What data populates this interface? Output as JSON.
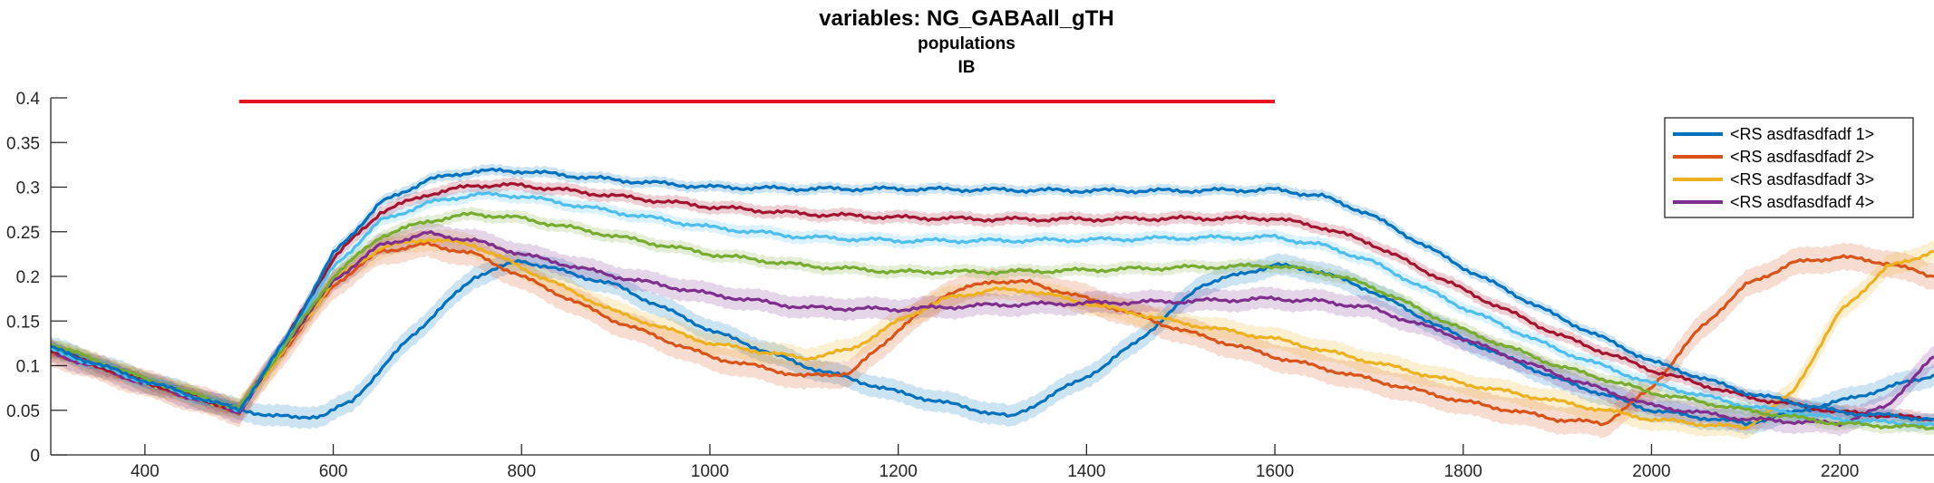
{
  "chart_data": {
    "type": "line",
    "title": "variables: NG_GABAall_gTH",
    "subtitle_lines": [
      "populations",
      "IB"
    ],
    "xlim": [
      300,
      2300
    ],
    "ylim": [
      0,
      0.4
    ],
    "xticks": [
      400,
      600,
      800,
      1000,
      1200,
      1400,
      1600,
      1800,
      2000,
      2200
    ],
    "yticks": [
      0,
      0.05,
      0.1,
      0.15,
      0.2,
      0.25,
      0.3,
      0.35,
      0.4
    ],
    "ytick_labels": [
      "0",
      "0.05",
      "0.1",
      "0.15",
      "0.2",
      "0.25",
      "0.3",
      "0.35",
      "0.4"
    ],
    "legend_position": "top-right",
    "stimulus_bar": {
      "x": [
        500,
        1600
      ],
      "y": 0.396,
      "color": "#e8131f"
    },
    "series": [
      {
        "name": "<RS asdfasdfadf 1>",
        "color": "#0072bd",
        "legend": true,
        "band": true,
        "band_width": 0.012,
        "x": [
          300,
          400,
          500,
          560,
          590,
          620,
          680,
          750,
          800,
          900,
          1000,
          1100,
          1200,
          1320,
          1360,
          1420,
          1480,
          1520,
          1600,
          1650,
          1700,
          1800,
          1900,
          2000,
          2100,
          2200,
          2300
        ],
        "y": [
          0.12,
          0.083,
          0.05,
          0.041,
          0.045,
          0.06,
          0.13,
          0.2,
          0.218,
          0.19,
          0.14,
          0.1,
          0.07,
          0.042,
          0.065,
          0.1,
          0.15,
          0.19,
          0.213,
          0.205,
          0.185,
          0.13,
          0.085,
          0.05,
          0.035,
          0.06,
          0.09
        ]
      },
      {
        "name": "<RS asdfasdfadf 2>",
        "color": "#d95319",
        "legend": true,
        "band": true,
        "band_width": 0.015,
        "x": [
          300,
          400,
          500,
          550,
          600,
          650,
          700,
          750,
          800,
          900,
          1000,
          1100,
          1150,
          1200,
          1250,
          1300,
          1340,
          1400,
          1500,
          1600,
          1700,
          1800,
          1900,
          1950,
          2000,
          2050,
          2100,
          2150,
          2200,
          2250,
          2300
        ],
        "y": [
          0.115,
          0.08,
          0.048,
          0.12,
          0.19,
          0.228,
          0.236,
          0.225,
          0.2,
          0.15,
          0.11,
          0.088,
          0.092,
          0.14,
          0.18,
          0.195,
          0.193,
          0.175,
          0.14,
          0.11,
          0.085,
          0.06,
          0.04,
          0.035,
          0.075,
          0.14,
          0.19,
          0.215,
          0.222,
          0.215,
          0.2
        ]
      },
      {
        "name": "<RS asdfasdfadf 3>",
        "color": "#edb120",
        "legend": true,
        "band": true,
        "band_width": 0.012,
        "x": [
          300,
          400,
          500,
          550,
          600,
          650,
          700,
          750,
          800,
          900,
          1000,
          1100,
          1150,
          1200,
          1250,
          1300,
          1340,
          1400,
          1500,
          1600,
          1700,
          1800,
          1900,
          2000,
          2100,
          2150,
          2200,
          2250,
          2300
        ],
        "y": [
          0.118,
          0.082,
          0.05,
          0.12,
          0.195,
          0.232,
          0.242,
          0.235,
          0.21,
          0.16,
          0.125,
          0.108,
          0.118,
          0.15,
          0.175,
          0.185,
          0.184,
          0.17,
          0.148,
          0.13,
          0.105,
          0.08,
          0.06,
          0.04,
          0.03,
          0.07,
          0.16,
          0.21,
          0.228
        ]
      },
      {
        "name": "<RS asdfasdfadf 4>",
        "color": "#7e2f8e",
        "legend": true,
        "band": true,
        "band_width": 0.012,
        "x": [
          300,
          400,
          500,
          550,
          600,
          650,
          700,
          750,
          800,
          900,
          1000,
          1100,
          1200,
          1300,
          1400,
          1500,
          1600,
          1650,
          1700,
          1800,
          1900,
          2000,
          2100,
          2200,
          2250,
          2300
        ],
        "y": [
          0.115,
          0.08,
          0.048,
          0.125,
          0.195,
          0.235,
          0.248,
          0.24,
          0.225,
          0.2,
          0.18,
          0.165,
          0.163,
          0.168,
          0.17,
          0.172,
          0.175,
          0.172,
          0.165,
          0.13,
          0.09,
          0.055,
          0.04,
          0.035,
          0.055,
          0.11
        ]
      },
      {
        "name": "",
        "color": "#a2142f",
        "legend": false,
        "band": true,
        "band_width": 0.007,
        "x": [
          300,
          400,
          500,
          550,
          600,
          650,
          700,
          750,
          800,
          900,
          1000,
          1100,
          1200,
          1300,
          1400,
          1500,
          1600,
          1650,
          1700,
          1800,
          1900,
          2000,
          2100,
          2200,
          2300
        ],
        "y": [
          0.118,
          0.082,
          0.05,
          0.13,
          0.22,
          0.272,
          0.292,
          0.302,
          0.302,
          0.29,
          0.278,
          0.27,
          0.266,
          0.264,
          0.264,
          0.265,
          0.265,
          0.255,
          0.238,
          0.185,
          0.135,
          0.095,
          0.065,
          0.048,
          0.04
        ]
      },
      {
        "name": "",
        "color": "#4dbeee",
        "legend": false,
        "band": true,
        "band_width": 0.007,
        "x": [
          300,
          400,
          500,
          550,
          600,
          650,
          700,
          750,
          800,
          900,
          1000,
          1100,
          1200,
          1300,
          1400,
          1500,
          1600,
          1650,
          1700,
          1800,
          1900,
          2000,
          2100,
          2200,
          2300
        ],
        "y": [
          0.118,
          0.082,
          0.05,
          0.128,
          0.21,
          0.262,
          0.282,
          0.292,
          0.29,
          0.272,
          0.255,
          0.244,
          0.24,
          0.24,
          0.241,
          0.243,
          0.244,
          0.235,
          0.218,
          0.165,
          0.118,
          0.08,
          0.055,
          0.04,
          0.033
        ]
      },
      {
        "name": "",
        "color": "#77ac30",
        "legend": false,
        "band": true,
        "band_width": 0.007,
        "x": [
          300,
          400,
          500,
          550,
          600,
          650,
          700,
          750,
          800,
          900,
          1000,
          1100,
          1200,
          1300,
          1400,
          1500,
          1600,
          1650,
          1700,
          1800,
          1900,
          2000,
          2100,
          2200,
          2300
        ],
        "y": [
          0.125,
          0.085,
          0.052,
          0.125,
          0.2,
          0.245,
          0.262,
          0.27,
          0.265,
          0.245,
          0.225,
          0.212,
          0.205,
          0.205,
          0.207,
          0.21,
          0.212,
          0.205,
          0.19,
          0.14,
          0.1,
          0.07,
          0.05,
          0.035,
          0.03
        ]
      },
      {
        "name": "",
        "color": "#0072bd",
        "legend": false,
        "band": true,
        "band_width": 0.006,
        "x": [
          300,
          400,
          500,
          550,
          600,
          650,
          700,
          750,
          800,
          900,
          1000,
          1100,
          1200,
          1300,
          1400,
          1500,
          1600,
          1650,
          1700,
          1800,
          1900,
          2000,
          2100,
          2200,
          2300
        ],
        "y": [
          0.12,
          0.083,
          0.05,
          0.13,
          0.225,
          0.282,
          0.308,
          0.318,
          0.318,
          0.308,
          0.3,
          0.298,
          0.298,
          0.297,
          0.296,
          0.296,
          0.297,
          0.29,
          0.27,
          0.21,
          0.155,
          0.105,
          0.07,
          0.048,
          0.04
        ]
      }
    ]
  }
}
